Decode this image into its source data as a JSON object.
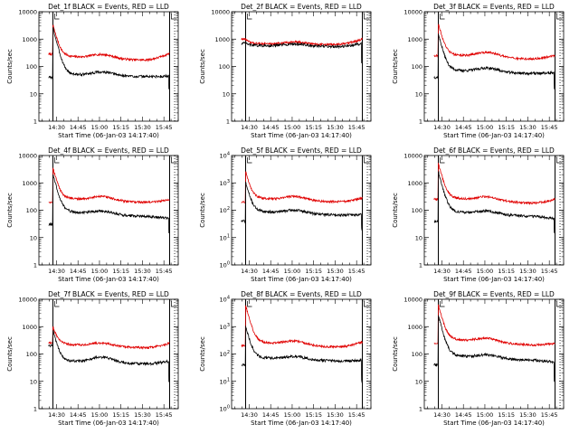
{
  "figure": {
    "layout": "3x3 grid of time-series panels"
  },
  "chart_data": {
    "type": "line",
    "x_axis": {
      "label": "Start Time (06-Jan-03 14:17:40)",
      "ticks": [
        "14:30",
        "14:45",
        "15:00",
        "15:15",
        "15:30",
        "15:45"
      ],
      "tick_minutes": [
        30,
        45,
        60,
        75,
        90,
        105
      ],
      "xlim_minutes": [
        17.7,
        115
      ]
    },
    "y_axis": {
      "label": "Counts/sec",
      "scale": "log",
      "ylim": [
        1,
        10000
      ]
    },
    "markers_minutes": [
      {
        "style": "solid",
        "at": 27.5
      },
      {
        "style": "solid",
        "at": 109
      },
      {
        "style": "dotted",
        "at": 112.5
      }
    ],
    "legend": {
      "events_color": "#000000",
      "lld_color": "#e00000",
      "events_label": "Events",
      "lld_label": "LLD"
    },
    "panels": [
      {
        "detector": "1f",
        "title": "Det_1f BLACK = Events, RED = LLD",
        "ytick_style": "plain",
        "ytick_labels": [
          "10000",
          "1000",
          "100",
          "10",
          "1"
        ],
        "events": {
          "pre": 40,
          "peak": 2500,
          "plateau": 55,
          "tail": 40,
          "bump": 1.35,
          "end": 45,
          "drop": 15
        },
        "lld": {
          "pre": 280,
          "peak": 3200,
          "plateau": 260,
          "tail": 150,
          "bump": 1.4,
          "end": 300
        }
      },
      {
        "detector": "2f",
        "title": "Det_2f BLACK = Events, RED = LLD",
        "ytick_style": "plain",
        "ytick_labels": [
          "10000",
          "1000",
          "100",
          "10",
          "1"
        ],
        "events": {
          "pre": 700,
          "peak": 700,
          "plateau": 600,
          "tail": 520,
          "bump": 1.2,
          "end": 700,
          "drop": 150
        },
        "lld": {
          "pre": 1000,
          "peak": 1000,
          "plateau": 700,
          "tail": 620,
          "bump": 1.2,
          "end": 1000
        }
      },
      {
        "detector": "3f",
        "title": "Det_3f BLACK = Events, RED = LLD",
        "ytick_style": "plain",
        "ytick_labels": [
          "10000",
          "1000",
          "100",
          "10",
          "1"
        ],
        "events": {
          "pre": 40,
          "peak": 1500,
          "plateau": 80,
          "tail": 50,
          "bump": 1.4,
          "end": 60,
          "drop": 15
        },
        "lld": {
          "pre": 250,
          "peak": 3500,
          "plateau": 300,
          "tail": 160,
          "bump": 1.5,
          "end": 260
        }
      },
      {
        "detector": "4f",
        "title": "Det_4f BLACK = Events, RED = LLD",
        "ytick_style": "plain",
        "ytick_labels": [
          "10000",
          "1000",
          "100",
          "10",
          "1"
        ],
        "events": {
          "pre": 30,
          "peak": 2000,
          "plateau": 100,
          "tail": 50,
          "bump": 1.3,
          "end": 50,
          "drop": 15
        },
        "lld": {
          "pre": 200,
          "peak": 3500,
          "plateau": 300,
          "tail": 170,
          "bump": 1.4,
          "end": 250
        }
      },
      {
        "detector": "5f",
        "title": "Det_5f BLACK = Events, RED = LLD",
        "ytick_style": "power",
        "ytick_labels": [
          "10^4",
          "10^3",
          "10^2",
          "10^1",
          "10^0"
        ],
        "events": {
          "pre": 40,
          "peak": 1000,
          "plateau": 100,
          "tail": 60,
          "bump": 1.3,
          "end": 70,
          "drop": 20
        },
        "lld": {
          "pre": 200,
          "peak": 2500,
          "plateau": 300,
          "tail": 180,
          "bump": 1.4,
          "end": 280
        }
      },
      {
        "detector": "6f",
        "title": "Det_6f BLACK = Events, RED = LLD",
        "ytick_style": "plain",
        "ytick_labels": [
          "10000",
          "1000",
          "100",
          "10",
          "1"
        ],
        "events": {
          "pre": 40,
          "peak": 2500,
          "plateau": 100,
          "tail": 50,
          "bump": 1.3,
          "end": 50,
          "drop": 15
        },
        "lld": {
          "pre": 250,
          "peak": 5000,
          "plateau": 320,
          "tail": 150,
          "bump": 1.4,
          "end": 250
        }
      },
      {
        "detector": "7f",
        "title": "Det_7f BLACK = Events, RED = LLD",
        "ytick_style": "plain",
        "ytick_labels": [
          "10000",
          "1000",
          "100",
          "10",
          "1"
        ],
        "events": {
          "pre": 200,
          "peak": 700,
          "plateau": 60,
          "tail": 40,
          "bump": 1.6,
          "end": 55,
          "drop": 10
        },
        "lld": {
          "pre": 250,
          "peak": 1000,
          "plateau": 250,
          "tail": 150,
          "bump": 1.3,
          "end": 250
        }
      },
      {
        "detector": "8f",
        "title": "Det_8f BLACK = Events, RED = LLD",
        "ytick_style": "power",
        "ytick_labels": [
          "10^4",
          "10^3",
          "10^2",
          "10^1",
          "10^0"
        ],
        "events": {
          "pre": 40,
          "peak": 1000,
          "plateau": 80,
          "tail": 50,
          "bump": 1.3,
          "end": 60,
          "drop": 10
        },
        "lld": {
          "pre": 200,
          "peak": 6000,
          "plateau": 300,
          "tail": 150,
          "bump": 1.4,
          "end": 280
        }
      },
      {
        "detector": "9f",
        "title": "Det_9f BLACK = Events, RED = LLD",
        "ytick_style": "plain",
        "ytick_labels": [
          "10000",
          "1000",
          "100",
          "10",
          "1"
        ],
        "events": {
          "pre": 40,
          "peak": 2500,
          "plateau": 100,
          "tail": 50,
          "bump": 1.3,
          "end": 50,
          "drop": 10
        },
        "lld": {
          "pre": 250,
          "peak": 6000,
          "plateau": 400,
          "tail": 170,
          "bump": 1.4,
          "end": 250
        }
      }
    ]
  }
}
